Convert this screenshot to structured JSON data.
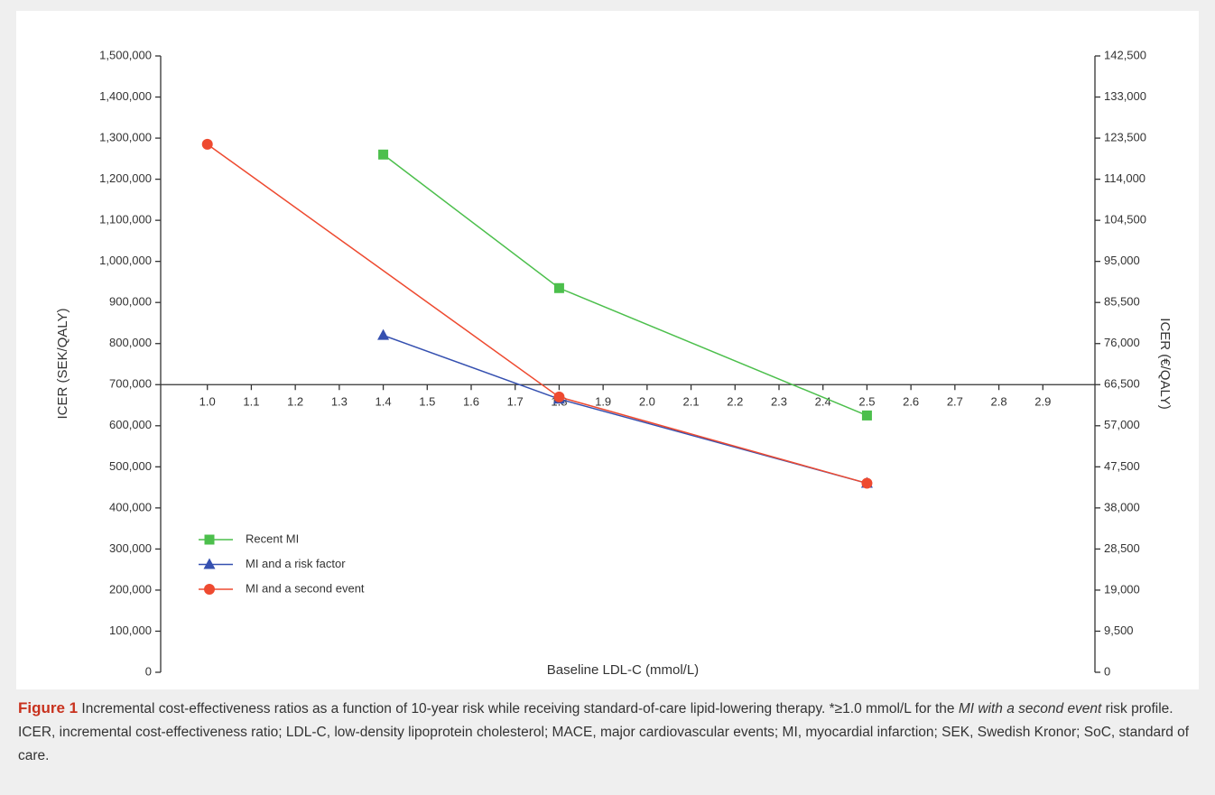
{
  "chart_data": {
    "type": "line",
    "y_label": "ICER (SEK/QALY)",
    "y2_label": "ICER (€/QALY)",
    "x_label": "Baseline LDL-C (mmol/L)",
    "xlim": [
      0.9,
      3.0
    ],
    "xticks": [
      {
        "value": 1,
        "label": "1.0"
      },
      1.1,
      1.2,
      1.3,
      1.4,
      1.5,
      1.6,
      1.7,
      1.8,
      1.9,
      {
        "value": 2,
        "label": "2.0"
      },
      2.1,
      2.2,
      2.3,
      2.4,
      2.5,
      2.6,
      2.7,
      2.8,
      2.9
    ],
    "ylim": [
      0,
      1500000
    ],
    "yticks": [
      {
        "value": 0,
        "label": "0"
      },
      {
        "value": 100000,
        "label": "100,000"
      },
      {
        "value": 200000,
        "label": "200,000"
      },
      {
        "value": 300000,
        "label": "300,000"
      },
      {
        "value": 400000,
        "label": "400,000"
      },
      {
        "value": 500000,
        "label": "500,000"
      },
      {
        "value": 600000,
        "label": "600,000"
      },
      {
        "value": 700000,
        "label": "700,000"
      },
      {
        "value": 800000,
        "label": "800,000"
      },
      {
        "value": 900000,
        "label": "900,000"
      },
      {
        "value": 1000000,
        "label": "1,000,000"
      },
      {
        "value": 1100000,
        "label": "1,100,000"
      },
      {
        "value": 1200000,
        "label": "1,200,000"
      },
      {
        "value": 1300000,
        "label": "1,300,000"
      },
      {
        "value": 1400000,
        "label": "1,400,000"
      },
      {
        "value": 1500000,
        "label": "1,500,000"
      }
    ],
    "y2lim": [
      0,
      142500
    ],
    "y2ticks": [
      0,
      {
        "value": 9500,
        "label": "9,500"
      },
      {
        "value": 19000,
        "label": "19,000"
      },
      {
        "value": 28500,
        "label": "28,500"
      },
      {
        "value": 38000,
        "label": "38,000"
      },
      {
        "value": 47500,
        "label": "47,500"
      },
      {
        "value": 57000,
        "label": "57,000"
      },
      {
        "value": 66500,
        "label": "66,500"
      },
      {
        "value": 76000,
        "label": "76,000"
      },
      {
        "value": 85500,
        "label": "85,500"
      },
      {
        "value": 95000,
        "label": "95,000"
      },
      {
        "value": 104500,
        "label": "104,500"
      },
      {
        "value": 114000,
        "label": "114,000"
      },
      {
        "value": 123500,
        "label": "123,500"
      },
      {
        "value": 133000,
        "label": "133,000"
      },
      {
        "value": 142500,
        "label": "142,500"
      }
    ],
    "x_axis_at": 700000,
    "series": [
      {
        "name": "Recent MI",
        "color": "#4cbf4c",
        "marker": "square",
        "x": [
          1.4,
          1.8,
          2.5
        ],
        "values": [
          1260000,
          935000,
          625000
        ]
      },
      {
        "name": "MI and a risk factor",
        "color": "#3550b0",
        "marker": "triangle",
        "x": [
          1.4,
          1.8,
          2.5
        ],
        "values": [
          820000,
          665000,
          460000
        ]
      },
      {
        "name": "MI and a second event",
        "color": "#ee4a30",
        "marker": "circle",
        "x": [
          1.0,
          1.8,
          2.5
        ],
        "values": [
          1285000,
          670000,
          460000
        ]
      }
    ],
    "legend": "lower-left"
  },
  "caption": {
    "label": "Figure 1",
    "text1": " Incremental cost-effectiveness ratios as a function of 10-year risk while receiving standard-of-care lipid-lowering therapy. *≥1.0 mmol/L for the ",
    "italic": "MI with a second event",
    "text2": " risk profile. ICER, incremental cost-effectiveness ratio; LDL-C, low-density lipoprotein cholesterol; MACE, major cardiovascular events; MI, myocardial infarction; SEK, Swedish Kronor; SoC, standard of care."
  }
}
